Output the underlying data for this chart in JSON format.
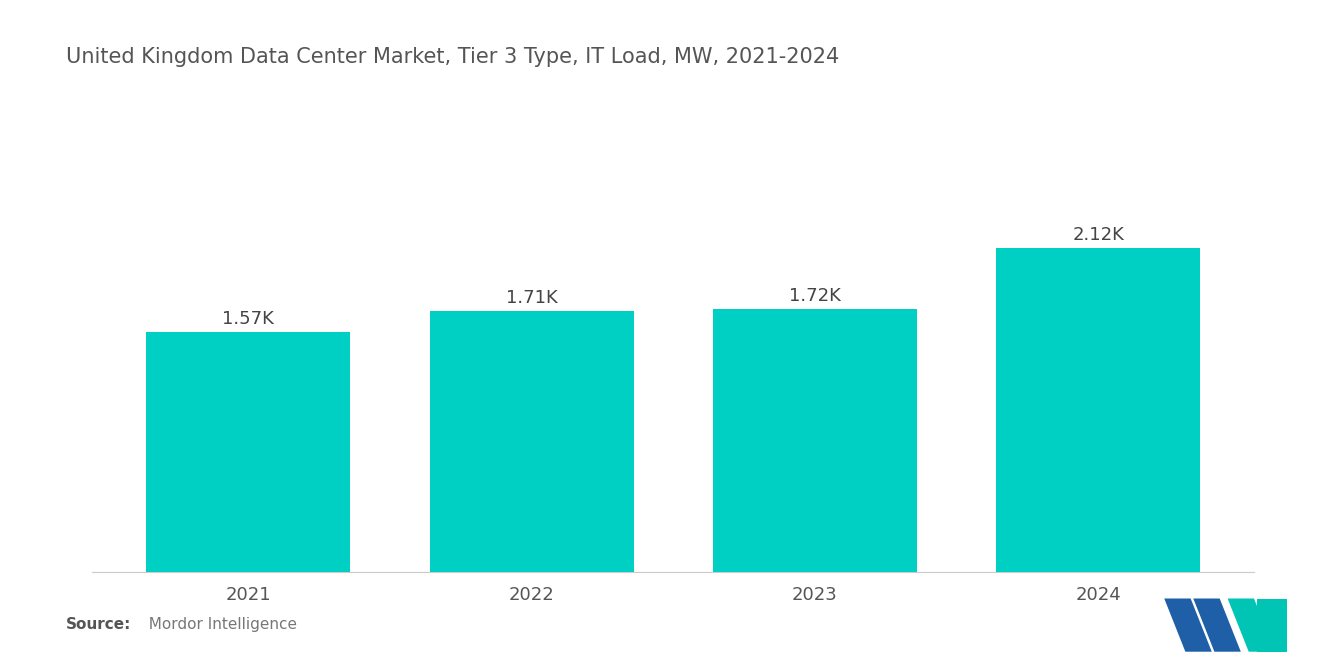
{
  "title": "United Kingdom Data Center Market, Tier 3 Type, IT Load, MW, 2021-2024",
  "categories": [
    "2021",
    "2022",
    "2023",
    "2024"
  ],
  "values": [
    1570,
    1710,
    1720,
    2120
  ],
  "labels": [
    "1.57K",
    "1.71K",
    "1.72K",
    "2.12K"
  ],
  "bar_color": "#00D0C4",
  "background_color": "#ffffff",
  "title_fontsize": 15,
  "label_fontsize": 13,
  "tick_fontsize": 13,
  "source_bold": "Source:",
  "source_normal": "  Mordor Intelligence",
  "ylim": [
    0,
    2700
  ],
  "bar_width": 0.72,
  "logo_blue": "#1E5FA8",
  "logo_teal": "#00C4B4"
}
